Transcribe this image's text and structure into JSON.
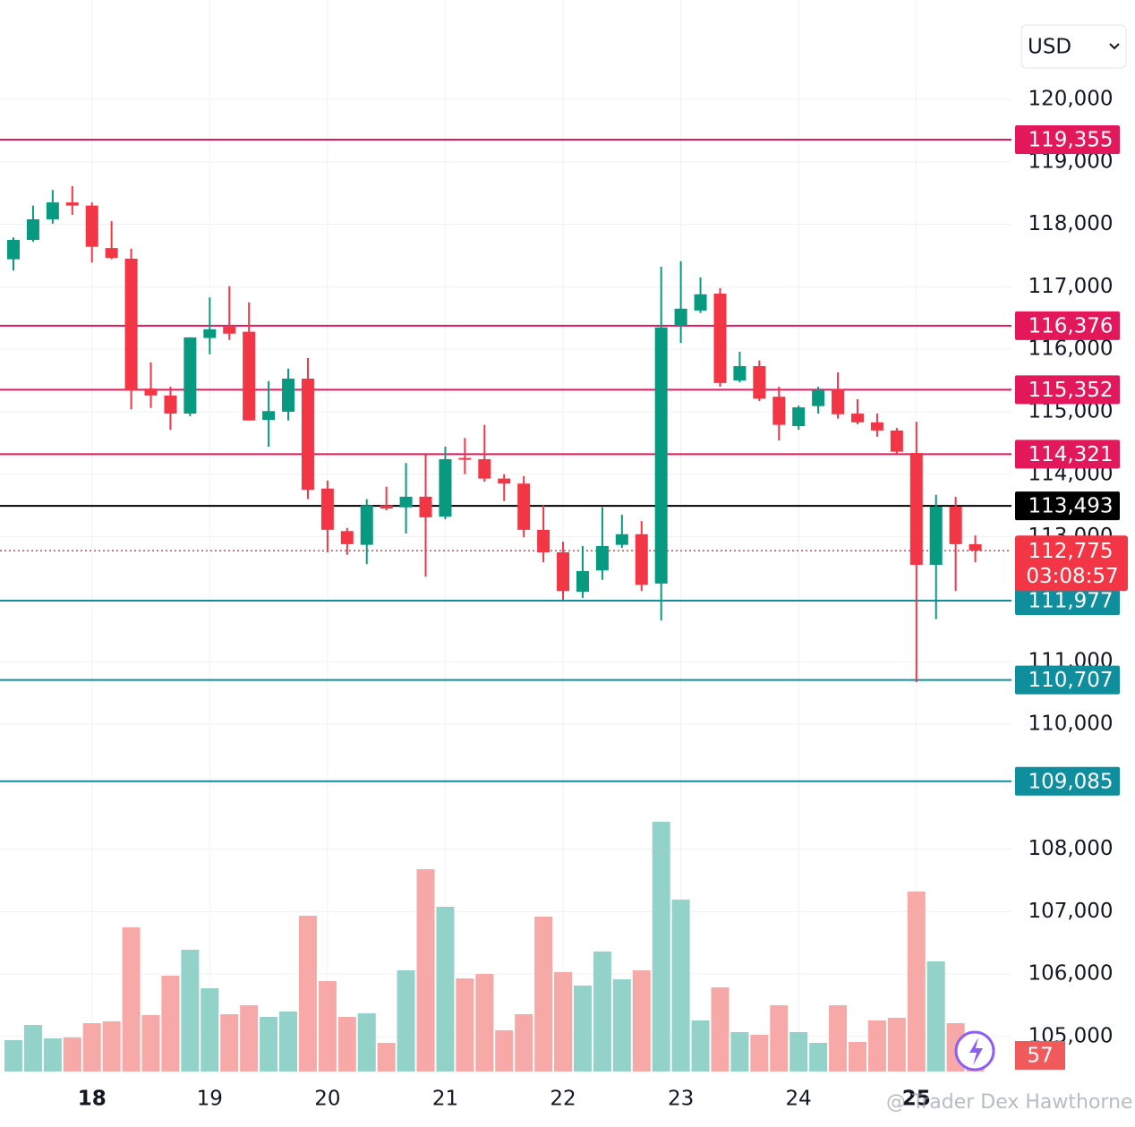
{
  "chart_data": {
    "type": "candlestick",
    "currency": "USD",
    "up_color": "#089981",
    "down_color": "#f23645",
    "volume_up_color": "#92d2c8",
    "volume_down_color": "#f7a9a7",
    "open": [
      117440,
      117750,
      118080,
      118350,
      118300,
      117620,
      117450,
      115370,
      115260,
      114970,
      116180,
      116360,
      116280,
      114870,
      115000,
      115530,
      113770,
      113090,
      112870,
      113500,
      113470,
      113640,
      113320,
      114260,
      114240,
      113930,
      113850,
      113110,
      112750,
      112120,
      112460,
      112870,
      113040,
      112250,
      116380,
      116620,
      116890,
      115500,
      115730,
      115240,
      114770,
      115090,
      115360,
      114970,
      114830,
      114700,
      114340,
      112550,
      113480,
      112880
    ],
    "high": [
      117790,
      118300,
      118550,
      118610,
      118350,
      118050,
      117610,
      115790,
      115400,
      116190,
      116830,
      117010,
      116750,
      115490,
      115690,
      115860,
      113900,
      113140,
      113600,
      113800,
      114180,
      114310,
      114440,
      114580,
      114790,
      114000,
      113970,
      113500,
      112920,
      112850,
      113470,
      113350,
      113250,
      117320,
      117410,
      117150,
      116980,
      115960,
      115820,
      115400,
      115100,
      115400,
      115630,
      115200,
      114970,
      114740,
      114840,
      113670,
      113640,
      113020
    ],
    "low": [
      117260,
      117720,
      118010,
      118150,
      117390,
      117440,
      115040,
      115060,
      114710,
      114930,
      115920,
      116150,
      114860,
      114440,
      114860,
      113600,
      112750,
      112710,
      112560,
      113420,
      113050,
      112360,
      113280,
      114000,
      113880,
      113570,
      112990,
      112590,
      111990,
      112020,
      112310,
      112820,
      112130,
      111660,
      116100,
      116580,
      115400,
      115470,
      115170,
      114540,
      114710,
      114970,
      114890,
      114800,
      114600,
      114330,
      110670,
      111680,
      112130,
      112590
    ],
    "close": [
      117750,
      118080,
      118350,
      118300,
      117640,
      117460,
      115340,
      115260,
      114970,
      116190,
      116320,
      116250,
      114860,
      115010,
      115530,
      113750,
      113110,
      112880,
      113500,
      113450,
      113640,
      113310,
      114240,
      114240,
      113930,
      113850,
      113110,
      112750,
      112130,
      112450,
      112850,
      113040,
      112230,
      116350,
      116650,
      116880,
      115460,
      115730,
      115210,
      114790,
      115070,
      115340,
      114960,
      114830,
      114700,
      114360,
      112550,
      113480,
      112880,
      112780
    ],
    "volume": [
      35,
      52,
      37,
      38,
      54,
      56,
      161,
      63,
      107,
      136,
      93,
      64,
      74,
      61,
      67,
      174,
      101,
      61,
      65,
      32,
      113,
      226,
      184,
      104,
      109,
      46,
      64,
      173,
      111,
      96,
      134,
      103,
      113,
      279,
      192,
      57,
      94,
      44,
      41,
      74,
      44,
      32,
      74,
      33,
      57,
      60,
      201,
      123,
      54,
      7
    ],
    "ylim": [
      104440,
      121590
    ],
    "yticks": [
      {
        "value": 120000,
        "label": "120,000"
      },
      {
        "value": 119000,
        "label": "119,000"
      },
      {
        "value": 118000,
        "label": "118,000"
      },
      {
        "value": 117000,
        "label": "117,000"
      },
      {
        "value": 116000,
        "label": "116,000"
      },
      {
        "value": 115000,
        "label": "115,000"
      },
      {
        "value": 114000,
        "label": "114,000"
      },
      {
        "value": 113000,
        "label": "113,000"
      },
      {
        "value": 111000,
        "label": "111,000"
      },
      {
        "value": 110000,
        "label": "110,000"
      },
      {
        "value": 108000,
        "label": "108,000"
      },
      {
        "value": 107000,
        "label": "107,000"
      },
      {
        "value": 106000,
        "label": "106,000"
      },
      {
        "value": 105000,
        "label": "105,000"
      }
    ],
    "xticks": [
      {
        "value": 4,
        "label": "18"
      },
      {
        "value": 10,
        "label": "19"
      },
      {
        "value": 16,
        "label": "20"
      },
      {
        "value": 22,
        "label": "21"
      },
      {
        "value": 28,
        "label": "22"
      },
      {
        "value": 34,
        "label": "23"
      },
      {
        "value": 40,
        "label": "24"
      },
      {
        "value": 46,
        "label": "25"
      }
    ],
    "bold_xticks": [
      "18",
      "25"
    ],
    "grid": true,
    "levels": [
      {
        "value": 119355,
        "label": "119,355",
        "color": "#e2185b"
      },
      {
        "value": 116376,
        "label": "116,376",
        "color": "#e2185b"
      },
      {
        "value": 115352,
        "label": "115,352",
        "color": "#e2185b"
      },
      {
        "value": 114321,
        "label": "114,321",
        "color": "#e2185b"
      },
      {
        "value": 113493,
        "label": "113,493",
        "color": "#000000"
      },
      {
        "value": 111977,
        "label": "111,977",
        "color": "#0f8f9e"
      },
      {
        "value": 110707,
        "label": "110,707",
        "color": "#0f8f9e"
      },
      {
        "value": 109085,
        "label": "109,085",
        "color": "#0f8f9e"
      }
    ],
    "last_price": {
      "value": 112775,
      "label": "112,775",
      "countdown": "03:08:57",
      "color": "#f23645"
    },
    "badge": "57",
    "watermark": "@ Trader Dex Hawthorne"
  }
}
